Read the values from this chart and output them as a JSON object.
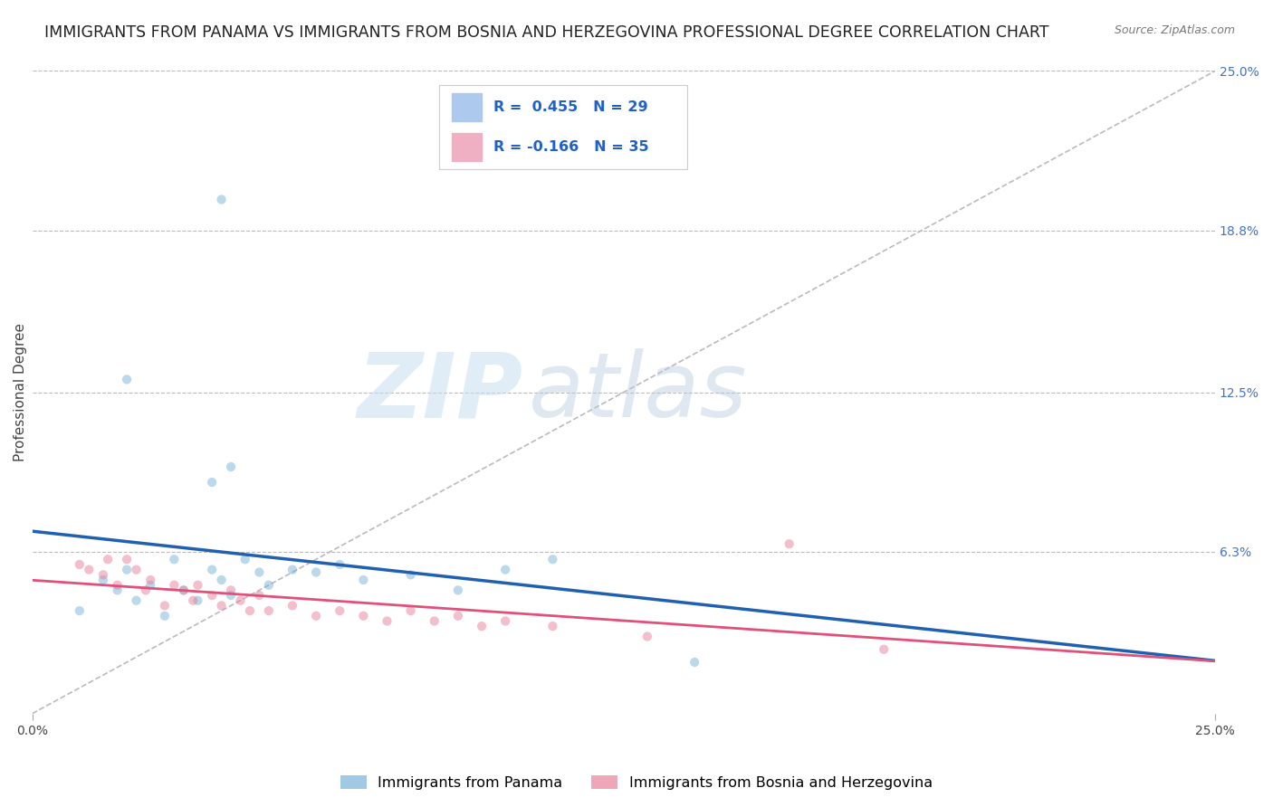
{
  "title": "IMMIGRANTS FROM PANAMA VS IMMIGRANTS FROM BOSNIA AND HERZEGOVINA PROFESSIONAL DEGREE CORRELATION CHART",
  "source": "Source: ZipAtlas.com",
  "ylabel": "Professional Degree",
  "x_min": 0.0,
  "x_max": 0.25,
  "y_min": 0.0,
  "y_max": 0.25,
  "panama_color": "#7ab3d9",
  "bosnia_color": "#e8809a",
  "panama_line_color": "#2060b0",
  "bosnia_line_color": "#e0507a",
  "legend_box_panama": "#adc9ee",
  "legend_box_bosnia": "#f0b0c4",
  "legend_text_color": "#2060cc",
  "panama_scatter": [
    [
      0.01,
      0.04
    ],
    [
      0.015,
      0.052
    ],
    [
      0.018,
      0.048
    ],
    [
      0.02,
      0.056
    ],
    [
      0.022,
      0.044
    ],
    [
      0.025,
      0.05
    ],
    [
      0.028,
      0.038
    ],
    [
      0.03,
      0.06
    ],
    [
      0.032,
      0.048
    ],
    [
      0.035,
      0.044
    ],
    [
      0.038,
      0.056
    ],
    [
      0.04,
      0.052
    ],
    [
      0.042,
      0.046
    ],
    [
      0.045,
      0.06
    ],
    [
      0.048,
      0.055
    ],
    [
      0.05,
      0.05
    ],
    [
      0.055,
      0.056
    ],
    [
      0.06,
      0.055
    ],
    [
      0.065,
      0.058
    ],
    [
      0.07,
      0.052
    ],
    [
      0.08,
      0.054
    ],
    [
      0.09,
      0.048
    ],
    [
      0.1,
      0.056
    ],
    [
      0.11,
      0.06
    ],
    [
      0.02,
      0.13
    ],
    [
      0.038,
      0.09
    ],
    [
      0.042,
      0.096
    ],
    [
      0.04,
      0.2
    ],
    [
      0.14,
      0.02
    ]
  ],
  "bosnia_scatter": [
    [
      0.01,
      0.058
    ],
    [
      0.012,
      0.056
    ],
    [
      0.015,
      0.054
    ],
    [
      0.016,
      0.06
    ],
    [
      0.018,
      0.05
    ],
    [
      0.02,
      0.06
    ],
    [
      0.022,
      0.056
    ],
    [
      0.024,
      0.048
    ],
    [
      0.025,
      0.052
    ],
    [
      0.028,
      0.042
    ],
    [
      0.03,
      0.05
    ],
    [
      0.032,
      0.048
    ],
    [
      0.034,
      0.044
    ],
    [
      0.035,
      0.05
    ],
    [
      0.038,
      0.046
    ],
    [
      0.04,
      0.042
    ],
    [
      0.042,
      0.048
    ],
    [
      0.044,
      0.044
    ],
    [
      0.046,
      0.04
    ],
    [
      0.048,
      0.046
    ],
    [
      0.05,
      0.04
    ],
    [
      0.055,
      0.042
    ],
    [
      0.06,
      0.038
    ],
    [
      0.065,
      0.04
    ],
    [
      0.07,
      0.038
    ],
    [
      0.075,
      0.036
    ],
    [
      0.08,
      0.04
    ],
    [
      0.085,
      0.036
    ],
    [
      0.09,
      0.038
    ],
    [
      0.095,
      0.034
    ],
    [
      0.1,
      0.036
    ],
    [
      0.11,
      0.034
    ],
    [
      0.13,
      0.03
    ],
    [
      0.16,
      0.066
    ],
    [
      0.18,
      0.025
    ]
  ],
  "diagonal_line": [
    [
      0.0,
      0.0
    ],
    [
      0.25,
      0.25
    ]
  ],
  "background_color": "#ffffff",
  "grid_color": "#bbbbbb",
  "title_fontsize": 12.5,
  "axis_label_fontsize": 11,
  "tick_fontsize": 10,
  "scatter_size": 55,
  "scatter_alpha": 0.5,
  "legend_label_panama": "Immigrants from Panama",
  "legend_label_bosnia": "Immigrants from Bosnia and Herzegovina",
  "watermark_text": "ZIP",
  "watermark_text2": "atlas"
}
